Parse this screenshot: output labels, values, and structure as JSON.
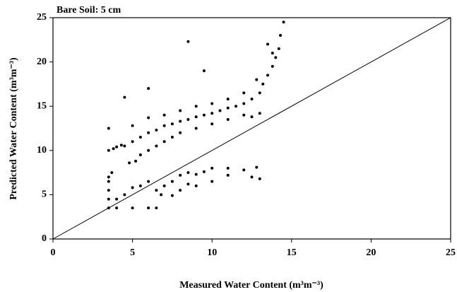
{
  "chart_data": {
    "type": "scatter",
    "title": "Bare Soil: 5 cm",
    "x_label": "Measured Water Content (m³m⁻³)",
    "y_label": "Predicted Water Content (m³m⁻³)",
    "xlim": [
      0,
      25
    ],
    "ylim": [
      0,
      25
    ],
    "xticks": [
      0,
      5,
      10,
      15,
      20,
      25
    ],
    "yticks": [
      0,
      5,
      10,
      15,
      20,
      25
    ],
    "color": "#000000",
    "x": [
      3.5,
      3.8,
      4,
      4.3,
      4.5,
      5,
      5.5,
      6,
      6.5,
      7,
      7.5,
      8,
      8.5,
      9,
      9.5,
      10,
      10.5,
      11,
      11.5,
      12,
      12.5,
      13,
      13.2,
      13.5,
      13.8,
      14,
      14.2,
      14.3,
      14.5,
      13.5,
      13.8,
      12.8,
      4.8,
      5.2,
      5.5,
      6,
      6.5,
      7,
      7.5,
      8,
      9,
      10,
      11,
      12,
      12.5,
      13,
      3.5,
      5,
      6,
      7,
      8,
      9,
      10,
      11,
      12,
      8.5,
      6,
      3.7,
      9.5,
      4.5,
      3.5,
      4,
      5,
      6,
      6.5,
      3.5,
      3.5,
      3.5,
      3.5,
      4,
      4.5,
      5,
      5.5,
      6,
      6.5,
      7,
      7.5,
      8,
      8.5,
      9,
      9.5,
      10,
      11,
      12,
      12.8,
      12.5,
      13,
      11,
      10,
      9,
      8,
      7.5,
      6.8,
      8.5
    ],
    "y": [
      10,
      10.2,
      10.4,
      10.6,
      10.5,
      11,
      11.5,
      12,
      12.3,
      12.8,
      13,
      13.3,
      13.5,
      13.8,
      14,
      14.2,
      14.5,
      14.8,
      15,
      15.3,
      15.8,
      16.5,
      17.5,
      18.5,
      19.5,
      20.5,
      21.5,
      23,
      24.5,
      22,
      21,
      18,
      8.6,
      8.8,
      9.5,
      10,
      10.5,
      11,
      11.5,
      12,
      12.5,
      13,
      13.5,
      14,
      13.8,
      14.2,
      12.5,
      12.8,
      13.7,
      14,
      14.5,
      15,
      15.3,
      15.8,
      16.5,
      22.3,
      17,
      7.5,
      19,
      16,
      3.5,
      3.5,
      3.5,
      3.5,
      3.5,
      4.5,
      5.5,
      6.5,
      7,
      4.5,
      5,
      5.8,
      6,
      6.5,
      5.5,
      6,
      6.5,
      7.2,
      7.5,
      7.3,
      7.6,
      8,
      8,
      7.8,
      8.1,
      7,
      6.8,
      7.2,
      6.5,
      6,
      5.5,
      4.9,
      5,
      6.2
    ]
  }
}
